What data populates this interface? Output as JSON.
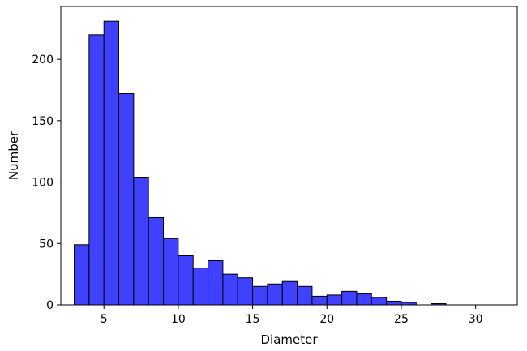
{
  "chart_data": {
    "type": "bar",
    "title": "",
    "xlabel": "Diameter",
    "ylabel": "Number",
    "xlim": [
      2.1,
      32.8
    ],
    "ylim": [
      0,
      243
    ],
    "grid": false,
    "bar_color": "#4040ff",
    "edge_color": "#000000",
    "bins": [
      {
        "x0": 3.0,
        "x1": 4.0,
        "value": 49
      },
      {
        "x0": 4.0,
        "x1": 5.0,
        "value": 220
      },
      {
        "x0": 5.0,
        "x1": 6.0,
        "value": 231
      },
      {
        "x0": 6.0,
        "x1": 7.0,
        "value": 172
      },
      {
        "x0": 7.0,
        "x1": 8.0,
        "value": 104
      },
      {
        "x0": 8.0,
        "x1": 9.0,
        "value": 71
      },
      {
        "x0": 9.0,
        "x1": 10.0,
        "value": 54
      },
      {
        "x0": 10.0,
        "x1": 11.0,
        "value": 40
      },
      {
        "x0": 11.0,
        "x1": 12.0,
        "value": 30
      },
      {
        "x0": 12.0,
        "x1": 13.0,
        "value": 36
      },
      {
        "x0": 13.0,
        "x1": 14.0,
        "value": 25
      },
      {
        "x0": 14.0,
        "x1": 15.0,
        "value": 22
      },
      {
        "x0": 15.0,
        "x1": 16.0,
        "value": 15
      },
      {
        "x0": 16.0,
        "x1": 17.0,
        "value": 17
      },
      {
        "x0": 17.0,
        "x1": 18.0,
        "value": 19
      },
      {
        "x0": 18.0,
        "x1": 19.0,
        "value": 15
      },
      {
        "x0": 19.0,
        "x1": 20.0,
        "value": 7
      },
      {
        "x0": 20.0,
        "x1": 21.0,
        "value": 8
      },
      {
        "x0": 21.0,
        "x1": 22.0,
        "value": 11
      },
      {
        "x0": 22.0,
        "x1": 23.0,
        "value": 9
      },
      {
        "x0": 23.0,
        "x1": 24.0,
        "value": 6
      },
      {
        "x0": 24.0,
        "x1": 25.0,
        "value": 3
      },
      {
        "x0": 25.0,
        "x1": 26.0,
        "value": 2
      },
      {
        "x0": 26.0,
        "x1": 27.0,
        "value": 0
      },
      {
        "x0": 27.0,
        "x1": 28.0,
        "value": 1
      },
      {
        "x0": 28.0,
        "x1": 29.0,
        "value": 0
      },
      {
        "x0": 29.0,
        "x1": 30.0,
        "value": 0
      },
      {
        "x0": 30.0,
        "x1": 31.0,
        "value": 0
      },
      {
        "x0": 31.0,
        "x1": 32.0,
        "value": 0
      }
    ],
    "x_ticks": [
      5,
      10,
      15,
      20,
      25,
      30
    ],
    "y_ticks": [
      0,
      50,
      100,
      150,
      200
    ]
  }
}
